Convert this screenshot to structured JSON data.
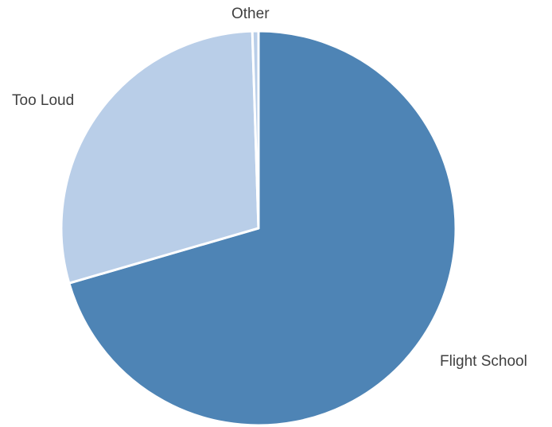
{
  "chart_data": {
    "type": "pie",
    "title": "",
    "categories": [
      "Flight School",
      "Too Loud",
      "Other"
    ],
    "values": [
      70.5,
      29.0,
      0.5
    ],
    "colors": [
      "#4e84b5",
      "#b9cee8",
      "#b9cee8"
    ],
    "start_angle_deg": 0,
    "direction": "clockwise",
    "legend": "none"
  }
}
